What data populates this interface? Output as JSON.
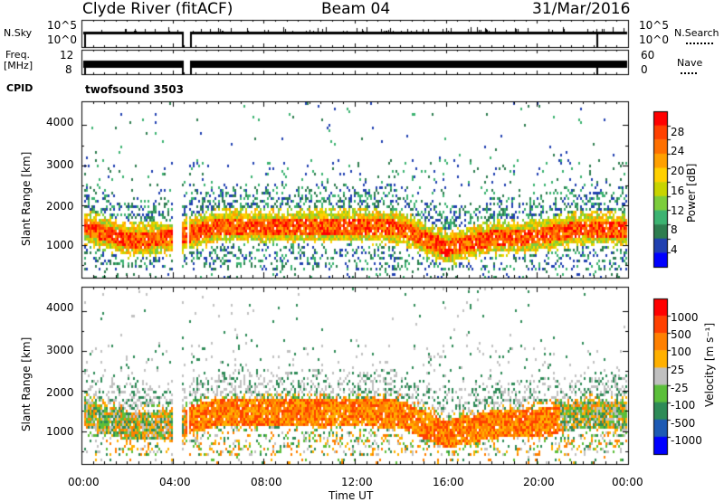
{
  "header": {
    "station": "Clyde River (fitACF)",
    "beam": "Beam 04",
    "date": "31/Mar/2016"
  },
  "status_panels": {
    "left_labels": [
      "N.Sky",
      "Freq.",
      "[MHz]",
      "CPID"
    ],
    "right_labels": [
      "N.Search",
      "Nave"
    ],
    "nsky_ticks": [
      "10^5",
      "10^0"
    ],
    "nsearch_ticks": [
      "10^5",
      "10^0"
    ],
    "freq_ticks": [
      "12",
      "8"
    ],
    "nave_ticks": [
      "60",
      "0"
    ],
    "cpid_text": "twofsound 3503",
    "data_gap_hours": [
      [
        0.1,
        4.6
      ]
    ]
  },
  "x_axis": {
    "label": "Time UT",
    "ticks": [
      "00:00",
      "04:00",
      "08:00",
      "12:00",
      "16:00",
      "20:00",
      "00:00"
    ]
  },
  "power_panel": {
    "ylabel": "Slant Range [km]",
    "yticks": [
      "4000",
      "3000",
      "2000",
      "1000"
    ],
    "colorbar_label": "Power [dB]",
    "colorbar_ticks": [
      "28",
      "24",
      "20",
      "16",
      "12",
      "8",
      "4"
    ]
  },
  "velocity_panel": {
    "ylabel": "Slant Range [km]",
    "yticks": [
      "4000",
      "3000",
      "2000",
      "1000"
    ],
    "colorbar_label": "Velocity [m s⁻¹]",
    "colorbar_ticks": [
      "1000",
      "500",
      "100",
      "25",
      "-25",
      "-100",
      "-500",
      "-1000"
    ]
  },
  "chart_data": {
    "type": "heatmap",
    "x_range_hours": [
      0,
      24
    ],
    "y_range_km": [
      180,
      4600
    ],
    "power_scale_db": [
      0,
      30
    ],
    "velocity_scale_mps": [
      -1000,
      1000
    ],
    "power_colors": [
      "#0000ff",
      "#2040b0",
      "#2e7d4f",
      "#3cb371",
      "#7ccd3c",
      "#c8d400",
      "#ffd000",
      "#ffa000",
      "#ff7000",
      "#ff4000",
      "#ff0000"
    ],
    "velocity_colors": [
      "#0000ff",
      "#1d5ab4",
      "#2e8b57",
      "#5bbf3a",
      "#c0c0c0",
      "#ffb000",
      "#ff8000",
      "#ff4000",
      "#ff0000"
    ],
    "main_band_km": [
      [
        0,
        1500
      ],
      [
        2,
        1150
      ],
      [
        4,
        1200
      ],
      [
        6,
        1500
      ],
      [
        9,
        1500
      ],
      [
        12,
        1500
      ],
      [
        14,
        1450
      ],
      [
        16,
        950
      ],
      [
        18,
        1200
      ],
      [
        20,
        1250
      ],
      [
        22,
        1450
      ],
      [
        24,
        1400
      ]
    ],
    "gaps_hours": [
      [
        0,
        0.1
      ],
      [
        4.0,
        4.35
      ],
      [
        4.6,
        4.65
      ]
    ]
  }
}
